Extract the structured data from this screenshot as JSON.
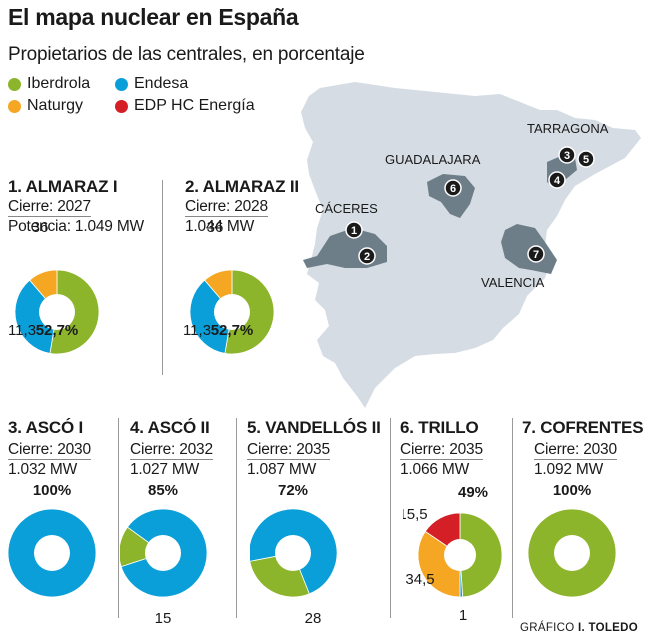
{
  "title": "El mapa nuclear en España",
  "subtitle": "Propietarios de las centrales, en porcentaje",
  "legend": [
    {
      "label": "Iberdrola",
      "color": "#8cb52b"
    },
    {
      "label": "Endesa",
      "color": "#0a9fd8"
    },
    {
      "label": "Naturgy",
      "color": "#f5a623"
    },
    {
      "label": "EDP HC Energía",
      "color": "#d41f26"
    }
  ],
  "map": {
    "labels": {
      "tarragona": "TARRAGONA",
      "guadalajara": "GUADALAJARA",
      "caceres": "CÁCERES",
      "valencia": "VALENCIA"
    },
    "markers": [
      "1",
      "2",
      "3",
      "4",
      "5",
      "6",
      "7"
    ]
  },
  "plants": [
    {
      "name": "1. ALMARAZ I",
      "closure": "Cierre: 2027",
      "power": "Potencia: 1.049 MW"
    },
    {
      "name": "2. ALMARAZ II",
      "closure": "Cierre: 2028",
      "power": "1.044 MW"
    },
    {
      "name": "3. ASCÓ I",
      "closure": "Cierre: 2030",
      "power": "1.032 MW"
    },
    {
      "name": "4. ASCÓ II",
      "closure": "Cierre: 2032",
      "power": "1.027 MW"
    },
    {
      "name": "5. VANDELLÓS II",
      "closure": "Cierre: 2035",
      "power": "1.087 MW"
    },
    {
      "name": "6. TRILLO",
      "closure": "Cierre: 2035",
      "power": "1.066 MW"
    },
    {
      "name": "7. COFRENTES",
      "closure": "Cierre: 2030",
      "power": "1.092 MW"
    }
  ],
  "chart_data": [
    {
      "type": "pie",
      "title": "1. ALMARAZ I",
      "categories": [
        "Iberdrola",
        "Endesa",
        "Naturgy"
      ],
      "values": [
        52.7,
        36,
        11.3
      ],
      "data_labels": [
        "52,7%",
        "36",
        "11,3"
      ]
    },
    {
      "type": "pie",
      "title": "2. ALMARAZ II",
      "categories": [
        "Iberdrola",
        "Endesa",
        "Naturgy"
      ],
      "values": [
        52.7,
        36,
        11.3
      ],
      "data_labels": [
        "52,7%",
        "36",
        "11,3"
      ]
    },
    {
      "type": "pie",
      "title": "3. ASCÓ I",
      "categories": [
        "Endesa"
      ],
      "values": [
        100
      ],
      "data_labels": [
        "100%"
      ]
    },
    {
      "type": "pie",
      "title": "4. ASCÓ II",
      "categories": [
        "Endesa",
        "Iberdrola"
      ],
      "values": [
        85,
        15
      ],
      "data_labels": [
        "85%",
        "15"
      ]
    },
    {
      "type": "pie",
      "title": "5. VANDELLÓS II",
      "categories": [
        "Endesa",
        "Iberdrola"
      ],
      "values": [
        72,
        28
      ],
      "data_labels": [
        "72%",
        "28"
      ]
    },
    {
      "type": "pie",
      "title": "6. TRILLO",
      "categories": [
        "Iberdrola",
        "Endesa",
        "Naturgy",
        "EDP HC Energía"
      ],
      "values": [
        49,
        1,
        34.5,
        15.5
      ],
      "data_labels": [
        "49%",
        "1",
        "34,5",
        "15,5"
      ]
    },
    {
      "type": "pie",
      "title": "7. COFRENTES",
      "categories": [
        "Iberdrola"
      ],
      "values": [
        100
      ],
      "data_labels": [
        "100%"
      ]
    }
  ],
  "credit": {
    "prefix": "GRÁFICO",
    "author": "I. TOLEDO"
  }
}
